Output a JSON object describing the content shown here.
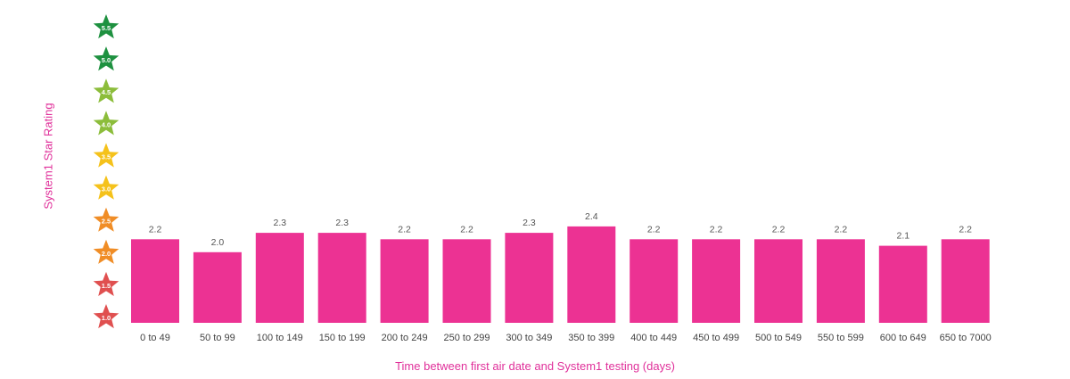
{
  "chart_data": {
    "type": "bar",
    "title": "",
    "xlabel": "Time between first air date and System1 testing (days)",
    "ylabel": "System1 Star Rating",
    "ylim": [
      1.0,
      5.5
    ],
    "categories": [
      "0 to 49",
      "50 to 99",
      "100 to 149",
      "150 to 199",
      "200 to 249",
      "250 to 299",
      "300 to 349",
      "350 to 399",
      "400 to 449",
      "450 to 499",
      "500 to 549",
      "550 to 599",
      "600 to 649",
      "650 to 7000"
    ],
    "values": [
      2.2,
      2.0,
      2.3,
      2.3,
      2.2,
      2.2,
      2.3,
      2.4,
      2.2,
      2.2,
      2.2,
      2.2,
      2.1,
      2.2
    ],
    "value_labels": [
      "2.2",
      "2.0",
      "2.3",
      "2.3",
      "2.2",
      "2.2",
      "2.3",
      "2.4",
      "2.2",
      "2.2",
      "2.2",
      "2.2",
      "2.1",
      "2.2"
    ],
    "y_star_ticks": [
      {
        "label": "5.5",
        "color": "#1e9140"
      },
      {
        "label": "5.0",
        "color": "#1e9140"
      },
      {
        "label": "4.5",
        "color": "#8cbd3b"
      },
      {
        "label": "4.0",
        "color": "#8cbd3b"
      },
      {
        "label": "3.5",
        "color": "#f5c21b"
      },
      {
        "label": "3.0",
        "color": "#f5c21b"
      },
      {
        "label": "2.5",
        "color": "#f08d26"
      },
      {
        "label": "2.0",
        "color": "#f08d26"
      },
      {
        "label": "1.5",
        "color": "#e05050"
      },
      {
        "label": "1.0",
        "color": "#e05050"
      }
    ],
    "y_axis_icon": "star-icon",
    "bar_color": "#ec3293",
    "axis_label_color": "#e0309a",
    "grid": false,
    "legend": "none"
  }
}
